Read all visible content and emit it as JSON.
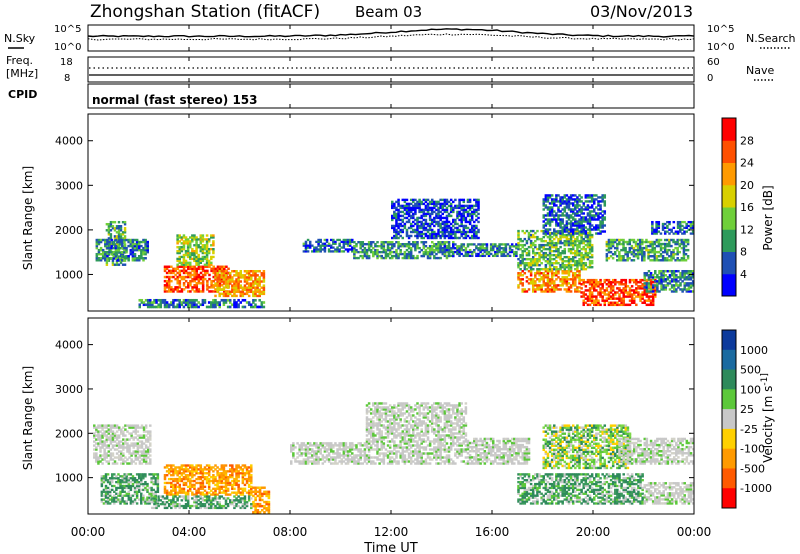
{
  "header": {
    "title": "Zhongshan Station (fitACF)",
    "beam": "Beam 03",
    "date": "03/Nov/2013"
  },
  "strips": {
    "noise": {
      "left_label": "N.Sky",
      "right_label": "N.Search",
      "left_ticks": [
        "10^5",
        "10^0"
      ],
      "right_ticks": [
        "10^5",
        "10^0"
      ]
    },
    "freq": {
      "left_label_1": "Freq.",
      "left_label_2": "[MHz]",
      "right_label": "Nave",
      "left_ticks": [
        "18",
        "8"
      ],
      "right_ticks": [
        "60",
        "0"
      ]
    },
    "cpid": {
      "label": "CPID",
      "mode_text": "normal (fast stereo) 153"
    }
  },
  "chart_data": [
    {
      "type": "heatmap",
      "title": "",
      "ylabel": "Slant Range [km]",
      "yticks": [
        1000,
        2000,
        3000,
        4000
      ],
      "ylim": [
        180,
        4600
      ],
      "xlim_hours": [
        0,
        24
      ],
      "colorbar": {
        "label": "Power [dB]",
        "ticks": [
          4,
          8,
          12,
          16,
          20,
          24,
          28
        ],
        "range": [
          0,
          32
        ],
        "colors": [
          "#0000ff",
          "#1f50b4",
          "#2e9a5b",
          "#6fcf3a",
          "#d8d000",
          "#ff9a00",
          "#ff5000",
          "#ff0000"
        ]
      },
      "regions": [
        {
          "t": [
            0.7,
            1.5
          ],
          "r": [
            1200,
            2200
          ],
          "v": 11
        },
        {
          "t": [
            0.3,
            2.4
          ],
          "r": [
            1300,
            1800
          ],
          "v": 9
        },
        {
          "t": [
            3.0,
            5.6
          ],
          "r": [
            600,
            1200
          ],
          "v": 26
        },
        {
          "t": [
            3.5,
            5.0
          ],
          "r": [
            1200,
            1900
          ],
          "v": 15
        },
        {
          "t": [
            5.0,
            7.0
          ],
          "r": [
            500,
            1100
          ],
          "v": 22
        },
        {
          "t": [
            2.0,
            7.0
          ],
          "r": [
            250,
            450
          ],
          "v": 8
        },
        {
          "t": [
            8.5,
            10.5
          ],
          "r": [
            1500,
            1800
          ],
          "v": 7
        },
        {
          "t": [
            10.5,
            14.5
          ],
          "r": [
            1350,
            1750
          ],
          "v": 10
        },
        {
          "t": [
            12.0,
            15.5
          ],
          "r": [
            1800,
            2700
          ],
          "v": 5
        },
        {
          "t": [
            14.0,
            17.0
          ],
          "r": [
            1400,
            1700
          ],
          "v": 8
        },
        {
          "t": [
            17.0,
            19.5
          ],
          "r": [
            600,
            1100
          ],
          "v": 23
        },
        {
          "t": [
            17.0,
            20.0
          ],
          "r": [
            1100,
            2000
          ],
          "v": 13
        },
        {
          "t": [
            18.0,
            20.5
          ],
          "r": [
            1900,
            2800
          ],
          "v": 6
        },
        {
          "t": [
            19.5,
            22.5
          ],
          "r": [
            300,
            900
          ],
          "v": 27
        },
        {
          "t": [
            20.5,
            23.8
          ],
          "r": [
            1300,
            1800
          ],
          "v": 11
        },
        {
          "t": [
            22.0,
            24.0
          ],
          "r": [
            600,
            1100
          ],
          "v": 9
        },
        {
          "t": [
            22.3,
            24.0
          ],
          "r": [
            1900,
            2200
          ],
          "v": 7
        }
      ]
    },
    {
      "type": "heatmap",
      "title": "",
      "ylabel": "Slant Range [km]",
      "yticks": [
        1000,
        2000,
        3000,
        4000
      ],
      "ylim": [
        180,
        4600
      ],
      "xlim_hours": [
        0,
        24
      ],
      "xticks": [
        "00:00",
        "04:00",
        "08:00",
        "12:00",
        "16:00",
        "20:00",
        "00:00"
      ],
      "xlabel": "Time UT",
      "colorbar": {
        "label": "Velocity [m s^-1]",
        "ticks": [
          "1000",
          "500",
          "100",
          "25",
          "-25",
          "-100",
          "-500",
          "-1000"
        ],
        "colors": [
          "#0c3a9c",
          "#1a6aa0",
          "#2e8a5b",
          "#5cc83a",
          "#c8c8c8",
          "#ffd000",
          "#ff9a00",
          "#ff5a00",
          "#ff0000"
        ]
      },
      "regions": [
        {
          "t": [
            0.2,
            2.5
          ],
          "r": [
            1300,
            2200
          ],
          "v": "grey"
        },
        {
          "t": [
            0.5,
            2.8
          ],
          "r": [
            400,
            1100
          ],
          "v": "green"
        },
        {
          "t": [
            3.0,
            6.5
          ],
          "r": [
            600,
            1300
          ],
          "v": "orange"
        },
        {
          "t": [
            6.5,
            7.2
          ],
          "r": [
            200,
            800
          ],
          "v": "orange"
        },
        {
          "t": [
            2.5,
            6.5
          ],
          "r": [
            300,
            600
          ],
          "v": "green"
        },
        {
          "t": [
            8.0,
            11.0
          ],
          "r": [
            1300,
            1800
          ],
          "v": "grey"
        },
        {
          "t": [
            11.0,
            15.0
          ],
          "r": [
            1300,
            2700
          ],
          "v": "grey"
        },
        {
          "t": [
            15.0,
            17.5
          ],
          "r": [
            1300,
            1900
          ],
          "v": "grey"
        },
        {
          "t": [
            17.0,
            22.0
          ],
          "r": [
            400,
            1100
          ],
          "v": "green"
        },
        {
          "t": [
            18.0,
            21.5
          ],
          "r": [
            1200,
            2200
          ],
          "v": "lightgreen"
        },
        {
          "t": [
            21.0,
            24.0
          ],
          "r": [
            1300,
            1900
          ],
          "v": "grey"
        },
        {
          "t": [
            22.0,
            24.0
          ],
          "r": [
            400,
            900
          ],
          "v": "grey"
        }
      ]
    }
  ]
}
